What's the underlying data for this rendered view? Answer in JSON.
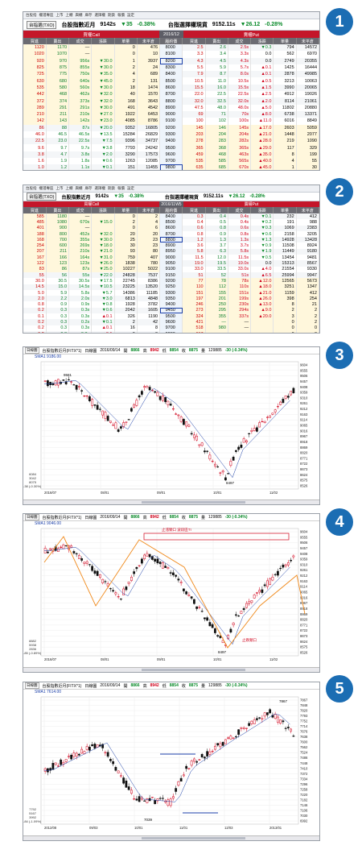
{
  "panel1": {
    "menu": [
      "台股指",
      "權證專區",
      "上市",
      "上櫃",
      "興櫃",
      "庫存",
      "選擇權",
      "期貨",
      "報價",
      "設定"
    ],
    "title": "台指選(TXO)",
    "contract": "台股指數近月",
    "price": "9142s",
    "change": "▼35",
    "pct": "-0.38%",
    "etitle": "台指選擇權現貨",
    "eprice": "9152.11s",
    "echange": "▼26.12",
    "epct": "-0.28%",
    "call_label": "買權Call",
    "month": "2016/12",
    "put_label": "賣權Put",
    "headers": [
      "買進",
      "賣出",
      "成交",
      "漲跌",
      "單量",
      "未平倉",
      "履約價",
      "買進",
      "賣出",
      "成交",
      "漲跌",
      "單量",
      "未平倉"
    ],
    "rows": [
      [
        "1120",
        "1170",
        "—",
        "",
        "0",
        "476",
        "8000",
        "2.5",
        "2.6",
        "2.5s",
        "▼0.3",
        "794",
        "14572"
      ],
      [
        "1020",
        "1070",
        "—",
        "",
        "0",
        "10",
        "8100",
        "3.3",
        "3.4",
        "3.3s",
        "0.0",
        "562",
        "6970"
      ],
      [
        "920",
        "970",
        "956s",
        "▼30.0",
        "1",
        "3937",
        "8200",
        "4.3",
        "4.5",
        "4.3s",
        "0.0",
        "2749",
        "20355"
      ],
      [
        "825",
        "875",
        "855s",
        "▼30.0",
        "2",
        "24",
        "8300",
        "5.5",
        "5.9",
        "5.7s",
        "▲0.1",
        "1425",
        "16444"
      ],
      [
        "725",
        "775",
        "750s",
        "▼35.0",
        "4",
        "689",
        "8400",
        "7.9",
        "8.7",
        "8.0s",
        "▲0.1",
        "2878",
        "49985"
      ],
      [
        "630",
        "680",
        "640s",
        "▼45.0",
        "2",
        "131",
        "8500",
        "10.5",
        "11.0",
        "10.5s",
        "▲0.5",
        "3213",
        "10063"
      ],
      [
        "535",
        "580",
        "560s",
        "▼30.0",
        "18",
        "1474",
        "8600",
        "15.5",
        "16.0",
        "15.5s",
        "▲1.5",
        "3990",
        "20065"
      ],
      [
        "442",
        "468",
        "462s",
        "▼32.0",
        "40",
        "1570",
        "8700",
        "22.0",
        "22.5",
        "22.5s",
        "▲2.5",
        "4912",
        "19026"
      ],
      [
        "372",
        "374",
        "373s",
        "▼32.0",
        "168",
        "3643",
        "8800",
        "32.0",
        "32.5",
        "32.0s",
        "▲2.0",
        "8114",
        "21061"
      ],
      [
        "289",
        "291",
        "291s",
        "▼30.0",
        "491",
        "4542",
        "8900",
        "47.5",
        "48.0",
        "48.0s",
        "▲5.0",
        "11802",
        "20880"
      ],
      [
        "210",
        "211",
        "210s",
        "▼27.0",
        "1922",
        "6453",
        "9000",
        "69",
        "71",
        "70s",
        "▲8.0",
        "6738",
        "13371"
      ],
      [
        "142",
        "143",
        "142s",
        "▼23.0",
        "4085",
        "8786",
        "9100",
        "100",
        "102",
        "100s",
        "▲11.0",
        "6016",
        "8849"
      ],
      [
        "86",
        "88",
        "87s",
        "▼20.0",
        "9352",
        "16805",
        "9200",
        "145",
        "146",
        "145s",
        "▲17.0",
        "2603",
        "5059"
      ],
      [
        "46.0",
        "46.5",
        "46.5s",
        "▼13.5",
        "15284",
        "26829",
        "9300",
        "203",
        "204",
        "204s",
        "▲21.0",
        "1448",
        "2077"
      ],
      [
        "22.5",
        "23.0",
        "22.5s",
        "▼7.5",
        "9396",
        "34737",
        "9400",
        "278",
        "283",
        "282s",
        "▲28.0",
        "219",
        "1090"
      ],
      [
        "9.6",
        "9.7",
        "9.7s",
        "▼3.8",
        "7793",
        "24242",
        "9500",
        "365",
        "368",
        "365s",
        "▲29.0",
        "117",
        "329"
      ],
      [
        "3.8",
        "4.7",
        "3.8s",
        "▼2.0",
        "3290",
        "17573",
        "9600",
        "459",
        "468",
        "463s",
        "▲35.0",
        "8",
        "199"
      ],
      [
        "1.6",
        "1.9",
        "1.8s",
        "▼0.6",
        "1263",
        "12085",
        "9700",
        "535",
        "585",
        "565s",
        "▲40.0",
        "4",
        "55"
      ],
      [
        "1.0",
        "1.2",
        "1.1s",
        "▼0.1",
        "151",
        "11455",
        "9800",
        "635",
        "685",
        "670s",
        "▲45.0",
        "1",
        "30"
      ],
      [
        "0.6",
        "0.8",
        "0.7s",
        "▼0.1",
        "187",
        "8044",
        "9900",
        "735",
        "785",
        "—",
        "",
        "0",
        "6"
      ]
    ]
  },
  "panel2": {
    "menu": [
      "台股指",
      "權證專區",
      "上市",
      "上櫃",
      "興櫃",
      "庫存",
      "選擇權",
      "期貨",
      "報價",
      "設定"
    ],
    "title": "台指選(TXO)",
    "contract": "台股指數近月",
    "price": "9142s",
    "change": "▼35",
    "pct": "-0.38%",
    "etitle": "台指選擇權現貨",
    "eprice": "9152.11s",
    "echange": "▼26.12",
    "epct": "-0.28%",
    "call_label": "買權Call",
    "month": "2016/11W5",
    "put_label": "賣權Put",
    "headers": [
      "買進",
      "賣出",
      "成交",
      "漲跌",
      "單量",
      "未平倉",
      "履約價",
      "買進",
      "賣出",
      "成交",
      "漲跌",
      "單量",
      "未平倉"
    ],
    "rows": [
      [
        "585",
        "1180",
        "—",
        "",
        "0",
        "2",
        "8400",
        "0.3",
        "0.4",
        "0.4s",
        "▼0.1",
        "232",
        "412"
      ],
      [
        "485",
        "1080",
        "670s",
        "▼15.0",
        "2",
        "4",
        "8500",
        "0.4",
        "0.5",
        "0.4s",
        "▼0.2",
        "191",
        "988"
      ],
      [
        "401",
        "900",
        "—",
        "",
        "0",
        "6",
        "8600",
        "0.6",
        "0.8",
        "0.6s",
        "▼0.3",
        "1069",
        "2383"
      ],
      [
        "188",
        "800",
        "452s",
        "▼32.0",
        "20",
        "20",
        "8700",
        "0.8",
        "0.9",
        "0.8s",
        "▼0.6",
        "2158",
        "3205"
      ],
      [
        "168",
        "700",
        "355s",
        "▼30.0",
        "25",
        "23",
        "8800",
        "1.2",
        "1.3",
        "1.3s",
        "▼1.3",
        "14928",
        "13428"
      ],
      [
        "254",
        "600",
        "269s",
        "▼18.0",
        "30",
        "23",
        "8900",
        "3.6",
        "3.7",
        "3.7s",
        "▼0.9",
        "11508",
        "8924"
      ],
      [
        "207",
        "211",
        "210s",
        "▼21.0",
        "93",
        "80",
        "8950",
        "5.8",
        "6.3",
        "5.8s",
        "▼1.9",
        "11449",
        "9180"
      ],
      [
        "167",
        "166",
        "164s",
        "▼31.0",
        "759",
        "407",
        "9000",
        "11.5",
        "12.0",
        "11.5s",
        "▼0.5",
        "13454",
        "9481"
      ],
      [
        "122",
        "123",
        "123s",
        "▼26.0",
        "1838",
        "780",
        "9050",
        "19.0",
        "19.5",
        "19.0s",
        "0.0",
        "15313",
        "8567"
      ],
      [
        "83",
        "86",
        "87s",
        "▼25.0",
        "10227",
        "5022",
        "9100",
        "33.0",
        "33.5",
        "33.0s",
        "▲4.0",
        "21554",
        "9330"
      ],
      [
        "55",
        "56",
        "55s",
        "▼22.0",
        "24828",
        "7537",
        "9150",
        "51",
        "52",
        "51s",
        "▲6.5",
        "25994",
        "9947"
      ],
      [
        "30.0",
        "30.5",
        "30.5s",
        "▼17.5",
        "22745",
        "8386",
        "9200",
        "77",
        "78",
        "78s",
        "▲12.0",
        "12565",
        "5673"
      ],
      [
        "14.5",
        "15.0",
        "14.5s",
        "▼10.5",
        "23225",
        "13520",
        "9250",
        "110",
        "112",
        "110s",
        "▲18.0",
        "3251",
        "1347"
      ],
      [
        "5.0",
        "5.9",
        "5.8s",
        "▼5.7",
        "14386",
        "11185",
        "9300",
        "151",
        "155",
        "151s",
        "▲21.0",
        "1159",
        "412"
      ],
      [
        "2.0",
        "2.2",
        "2.0s",
        "▼3.0",
        "6813",
        "4848",
        "9350",
        "197",
        "201",
        "199s",
        "▲26.0",
        "398",
        "254"
      ],
      [
        "0.8",
        "0.9",
        "0.9s",
        "▼0.8",
        "1928",
        "3782",
        "9400",
        "246",
        "250",
        "230s",
        "▲13.0",
        "8",
        "21"
      ],
      [
        "0.2",
        "0.3",
        "0.3s",
        "▼0.6",
        "2042",
        "1605",
        "9450",
        "273",
        "295",
        "294s",
        "▲9.0",
        "2",
        "2"
      ],
      [
        "0.1",
        "0.3",
        "0.3s",
        "▲0.1",
        "326",
        "1190",
        "9500",
        "324",
        "355",
        "337s",
        "▲20.0",
        "3",
        "2"
      ],
      [
        "0.2",
        "0.3",
        "0.2s",
        "▼0.1",
        "2",
        "42",
        "9600",
        "421",
        "—",
        "—",
        "",
        "0",
        "2"
      ],
      [
        "0.2",
        "0.3",
        "0.3s",
        "▲0.1",
        "16",
        "8",
        "9700",
        "518",
        "980",
        "—",
        "",
        "0",
        "0"
      ],
      [
        "0.2",
        "0.3",
        "0.3s",
        "▲0.1",
        "0",
        "0",
        "9800",
        "617",
        "—",
        "—",
        "",
        "0",
        "0"
      ]
    ]
  },
  "charts": [
    {
      "tab": "日線圖",
      "title": "台股指數近月(FITX*1)",
      "type": "日線圖",
      "date": "2016/09/14",
      "open_label": "開",
      "open": "8866",
      "high_label": "高",
      "high": "8942",
      "low_label": "低",
      "low": "8854",
      "close_label": "收",
      "close": "8875",
      "vol_label": "量",
      "vol": "129885",
      "chg": "-30 (-0.34%)",
      "sma": "SMA1 9186.00",
      "x_labels": [
        "2016/07",
        "08/01",
        "09/01",
        "10/01",
        "11/02"
      ],
      "y_labels": [
        "9604",
        "9555",
        "9506",
        "9457",
        "9408",
        "9359",
        "9310",
        "9261",
        "9212",
        "9163",
        "9114",
        "9065",
        "9016",
        "8967",
        "8918",
        "8869",
        "8820",
        "8771",
        "8722",
        "8673",
        "8624",
        "8575",
        "8526"
      ],
      "high_mark": "9581",
      "low_mark": "8497",
      "left_vals": [
        "6084",
        "3042",
        "8075"
      ],
      "left_label": "-38 (-0.30%)"
    },
    {
      "tab": "日線圖",
      "title": "台股指數近月(FITX*1)",
      "type": "日線圖",
      "date": "2016/09/14",
      "open_label": "開",
      "open": "8866",
      "high_label": "高",
      "high": "8942",
      "low_label": "低",
      "low": "8854",
      "close_label": "收",
      "close": "8875",
      "vol_label": "量",
      "vol": "129885",
      "chg": "-30 (-0.34%)",
      "sma": "SMA1 9046.00",
      "x_labels": [
        "2016/07",
        "08/01",
        "09/01",
        "10/01",
        "11/02"
      ],
      "y_labels": [
        "9604",
        "9555",
        "9506",
        "9457",
        "9408",
        "9359",
        "9310",
        "9261",
        "9212",
        "9163",
        "9114",
        "9065",
        "9016",
        "8967",
        "8918",
        "8869",
        "8820",
        "8771",
        "8722",
        "8673",
        "8624",
        "8575",
        "8526"
      ],
      "annot_top": "止漲頸口 波段區TI",
      "annot_low": "止跌頸口",
      "low_mark": "8497",
      "left_vals": [
        "8882",
        "5938",
        "2836"
      ],
      "left_label": "-85 (-0.89%)"
    },
    {
      "tab": "日線圖",
      "title": "台股指數近月(FITX*1)",
      "type": "日線圖",
      "date": "2016/09/14",
      "open_label": "開",
      "open": "8866",
      "high_label": "高",
      "high": "8942",
      "low_label": "低",
      "low": "8854",
      "close_label": "收",
      "close": "8875",
      "vol_label": "量",
      "vol": "129885",
      "chg": "-30 (-0.34%)",
      "sma": "SMA1 7614.00",
      "x_labels": [
        "2012/08",
        "09/03",
        "10/01",
        "11/01",
        "12/03",
        "2013/01"
      ],
      "y_labels": [
        "7867",
        "7848",
        "7820",
        "7793",
        "7752",
        "7714",
        "7676",
        "7638",
        "7600",
        "7562",
        "7524",
        "7486",
        "7448",
        "7410",
        "7372",
        "7334",
        "7296",
        "7258",
        "7220",
        "7182",
        "7146",
        "7106",
        "7030",
        "6992"
      ],
      "high_mark": "7867",
      "low_mark": "7039",
      "left_vals": [
        "7792",
        "5167",
        "3992"
      ],
      "left_label": "-84 (-1.09%)"
    }
  ],
  "badges": [
    "1",
    "2",
    "3",
    "4",
    "5"
  ]
}
